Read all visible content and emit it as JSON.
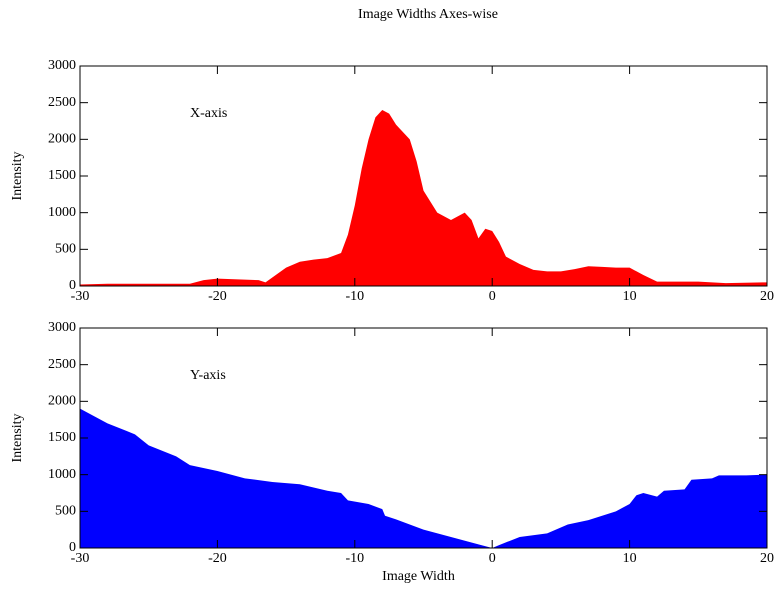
{
  "title": "Image Widths Axes-wise",
  "chart_data": [
    {
      "type": "area",
      "annotation": "X-axis",
      "ylabel": "Intensity",
      "color": "#ff0000",
      "x": [
        -30,
        -28,
        -25,
        -22,
        -21,
        -20,
        -17,
        -16.5,
        -15,
        -14,
        -13,
        -12,
        -11,
        -10.5,
        -10,
        -9.5,
        -9,
        -8.5,
        -8,
        -7.5,
        -7,
        -6,
        -5.5,
        -5,
        -4,
        -3,
        -2,
        -1.5,
        -1,
        -0.5,
        0,
        0.5,
        1,
        2,
        3,
        4,
        5,
        6,
        7,
        8,
        9,
        10,
        11,
        12,
        15,
        17,
        20
      ],
      "values": [
        20,
        30,
        30,
        30,
        80,
        100,
        80,
        50,
        250,
        330,
        360,
        380,
        450,
        700,
        1100,
        1600,
        2000,
        2300,
        2400,
        2350,
        2200,
        2000,
        1700,
        1300,
        1000,
        900,
        1000,
        900,
        650,
        780,
        750,
        600,
        400,
        300,
        220,
        200,
        200,
        230,
        270,
        260,
        250,
        250,
        150,
        60,
        60,
        40,
        50
      ],
      "xlim": [
        -30,
        20
      ],
      "ylim": [
        0,
        3000
      ],
      "xticks": [
        -30,
        -20,
        -10,
        0,
        10,
        20
      ],
      "yticks": [
        0,
        500,
        1000,
        1500,
        2000,
        2500,
        3000
      ]
    },
    {
      "type": "area",
      "annotation": "Y-axis",
      "ylabel": "Intensity",
      "xlabel": "Image Width",
      "color": "#0000ff",
      "x": [
        -30,
        -28,
        -26,
        -25,
        -23,
        -22,
        -20,
        -18,
        -16,
        -14,
        -12,
        -11,
        -10.5,
        -9,
        -8,
        -7.8,
        -7,
        -5,
        -3,
        -1,
        0,
        0.5,
        2,
        4,
        5.5,
        7,
        9,
        10,
        10.5,
        11,
        12,
        12.5,
        14,
        14.5,
        16,
        16.5,
        18.5,
        20
      ],
      "values": [
        1900,
        1700,
        1550,
        1400,
        1250,
        1130,
        1050,
        950,
        900,
        870,
        780,
        750,
        650,
        600,
        530,
        440,
        390,
        250,
        150,
        50,
        0,
        40,
        150,
        200,
        320,
        380,
        500,
        600,
        720,
        750,
        700,
        780,
        800,
        930,
        950,
        990,
        990,
        1000
      ],
      "xlim": [
        -30,
        20
      ],
      "ylim": [
        0,
        3000
      ],
      "xticks": [
        -30,
        -20,
        -10,
        0,
        10,
        20
      ],
      "yticks": [
        0,
        500,
        1000,
        1500,
        2000,
        2500,
        3000
      ]
    }
  ]
}
